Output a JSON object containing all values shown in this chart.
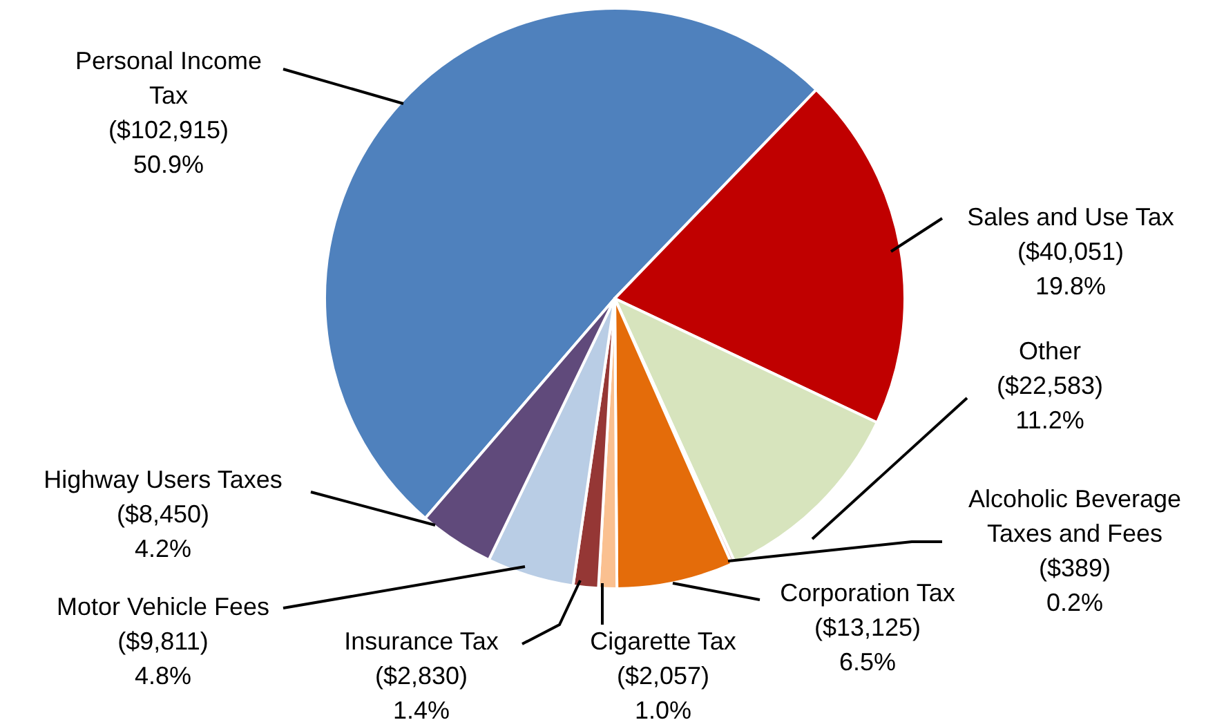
{
  "chart_data": {
    "type": "pie",
    "categories": [
      "Personal Income Tax",
      "Sales and Use Tax",
      "Other",
      "Alcoholic Beverage Taxes and Fees",
      "Corporation Tax",
      "Cigarette Tax",
      "Insurance Tax",
      "Motor Vehicle Fees",
      "Highway Users Taxes"
    ],
    "values": [
      102915,
      40051,
      22583,
      389,
      13125,
      2057,
      2830,
      9811,
      8450
    ],
    "colors": [
      "#4f81bd",
      "#c00000",
      "#d7e4bd",
      "#e6b9b8",
      "#e46c0a",
      "#fac090",
      "#953735",
      "#b9cde5",
      "#604a7b"
    ],
    "value_labels": [
      "($102,915)\n50.9%",
      "($40,051)\n19.8%",
      "($22,583)\n11.2%",
      "($389)\n0.2%",
      "($13,125)\n6.5%",
      "($2,057)\n1.0%",
      "($2,830)\n1.4%",
      "($9,811)\n4.8%",
      "($8,450)\n4.2%"
    ]
  }
}
